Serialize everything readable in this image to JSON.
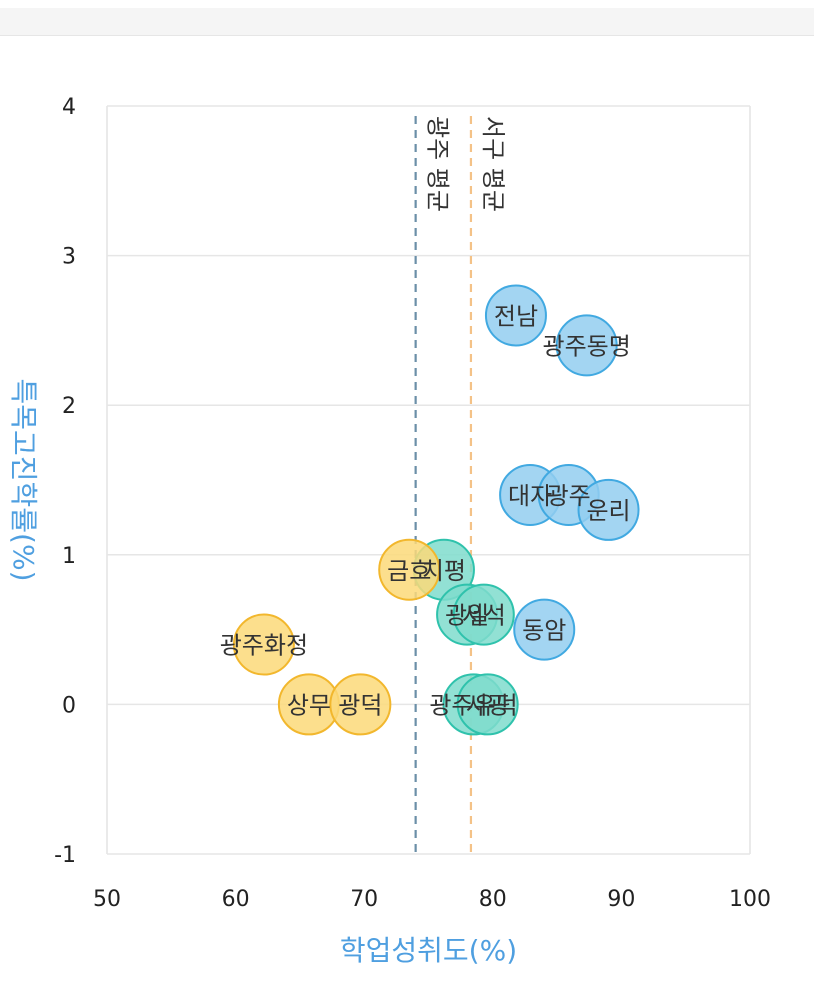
{
  "chart_data": {
    "type": "scatter",
    "xlabel": "학업성취도(%)",
    "ylabel": "특목고진학률(%)",
    "xlim": [
      50,
      100
    ],
    "ylim": [
      -1,
      4
    ],
    "xticks": [
      "50",
      "60",
      "70",
      "80",
      "90",
      "100"
    ],
    "yticks": [
      "-1",
      "0",
      "1",
      "2",
      "3",
      "4"
    ],
    "grid": "horizontal",
    "axis_title_color": "#4f9fe0",
    "reference_lines": [
      {
        "label": "광주 평균",
        "x": 74,
        "color": "#6b8fa8"
      },
      {
        "label": "서구 평균",
        "x": 78.3,
        "color": "#f4c287"
      }
    ],
    "series": [
      {
        "fill": "#93cef0",
        "stroke": "#41a9e1",
        "points": [
          {
            "label": "전남",
            "x": 81.8,
            "y": 2.6
          },
          {
            "label": "광주동명",
            "x": 87.3,
            "y": 2.4
          },
          {
            "label": "대자",
            "x": 82.9,
            "y": 1.4
          },
          {
            "label": "광주",
            "x": 85.9,
            "y": 1.4
          },
          {
            "label": "운리",
            "x": 89.0,
            "y": 1.3
          },
          {
            "label": "동암",
            "x": 84.0,
            "y": 0.5
          }
        ]
      },
      {
        "fill": "#7fdccd",
        "stroke": "#2fc2ac",
        "points": [
          {
            "label": "치평",
            "x": 76.2,
            "y": 0.9
          },
          {
            "label": "광일",
            "x": 78.0,
            "y": 0.6
          },
          {
            "label": "서석",
            "x": 79.3,
            "y": 0.6
          },
          {
            "label": "광주유덕",
            "x": 78.5,
            "y": 0.0
          },
          {
            "label": "서광",
            "x": 79.6,
            "y": 0.0
          }
        ]
      },
      {
        "fill": "#fbd979",
        "stroke": "#f2b72d",
        "points": [
          {
            "label": "금호",
            "x": 73.5,
            "y": 0.9
          },
          {
            "label": "광주화정",
            "x": 62.2,
            "y": 0.4
          },
          {
            "label": "상무",
            "x": 65.7,
            "y": 0.0
          },
          {
            "label": "광덕",
            "x": 69.7,
            "y": 0.0
          }
        ]
      }
    ]
  }
}
